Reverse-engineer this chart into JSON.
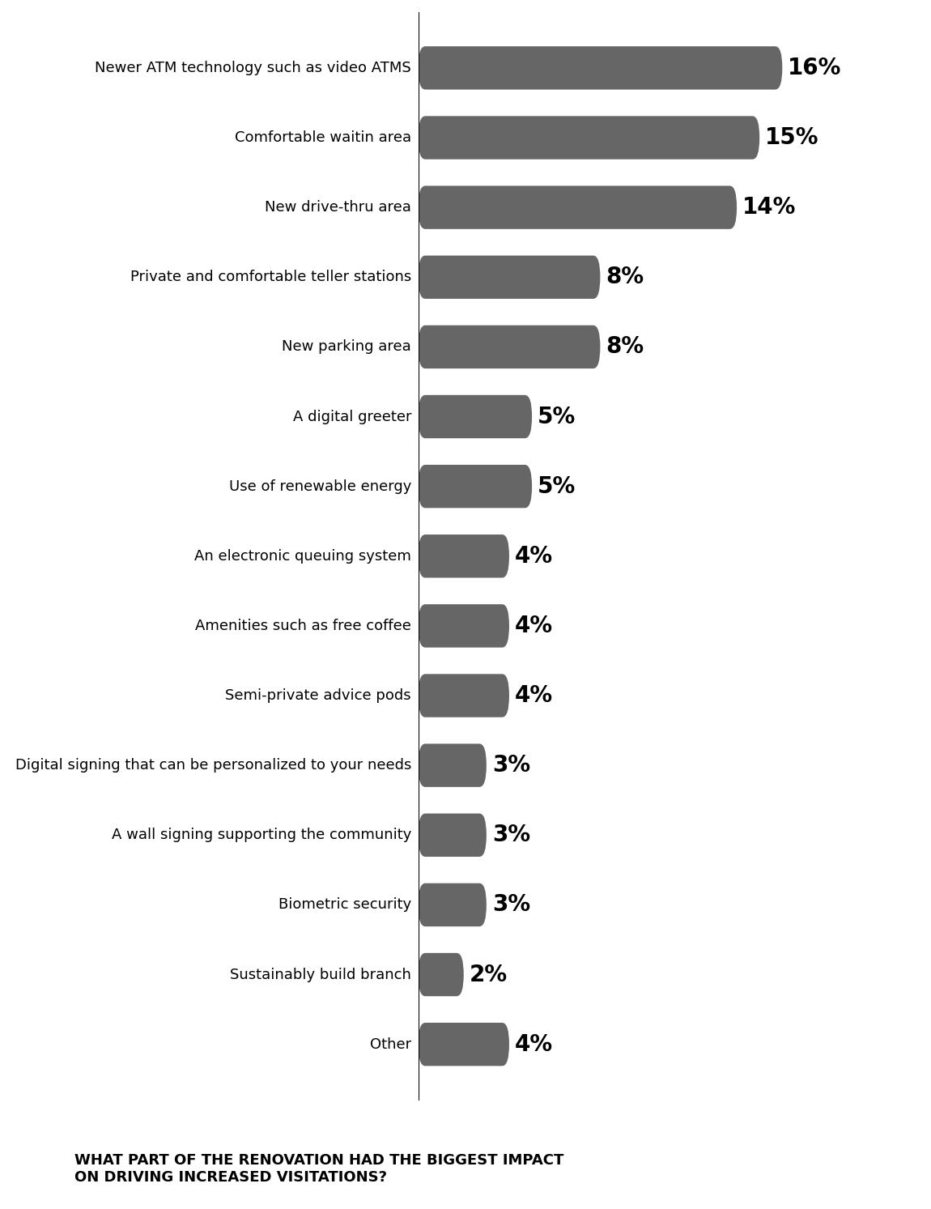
{
  "categories": [
    "Newer ATM technology such as video ATMS",
    "Comfortable waitin area",
    "New drive-thru area",
    "Private and comfortable teller stations",
    "New parking area",
    "A digital greeter",
    "Use of renewable energy",
    "An electronic queuing system",
    "Amenities such as free coffee",
    "Semi-private advice pods",
    "Digital signing that can be personalized to your needs",
    "A wall signing supporting the community",
    "Biometric security",
    "Sustainably build branch",
    "Other"
  ],
  "values": [
    16,
    15,
    14,
    8,
    8,
    5,
    5,
    4,
    4,
    4,
    3,
    3,
    3,
    2,
    4
  ],
  "bar_color": "#666666",
  "background_color": "#ffffff",
  "title_line1": "WHAT PART OF THE RENOVATION HAD THE BIGGEST IMPACT",
  "title_line2": "ON DRIVING INCREASED VISITATIONS?",
  "title_fontsize": 13,
  "label_fontsize": 13,
  "value_fontsize": 20,
  "bar_height": 0.62,
  "xlim": [
    0,
    22
  ]
}
